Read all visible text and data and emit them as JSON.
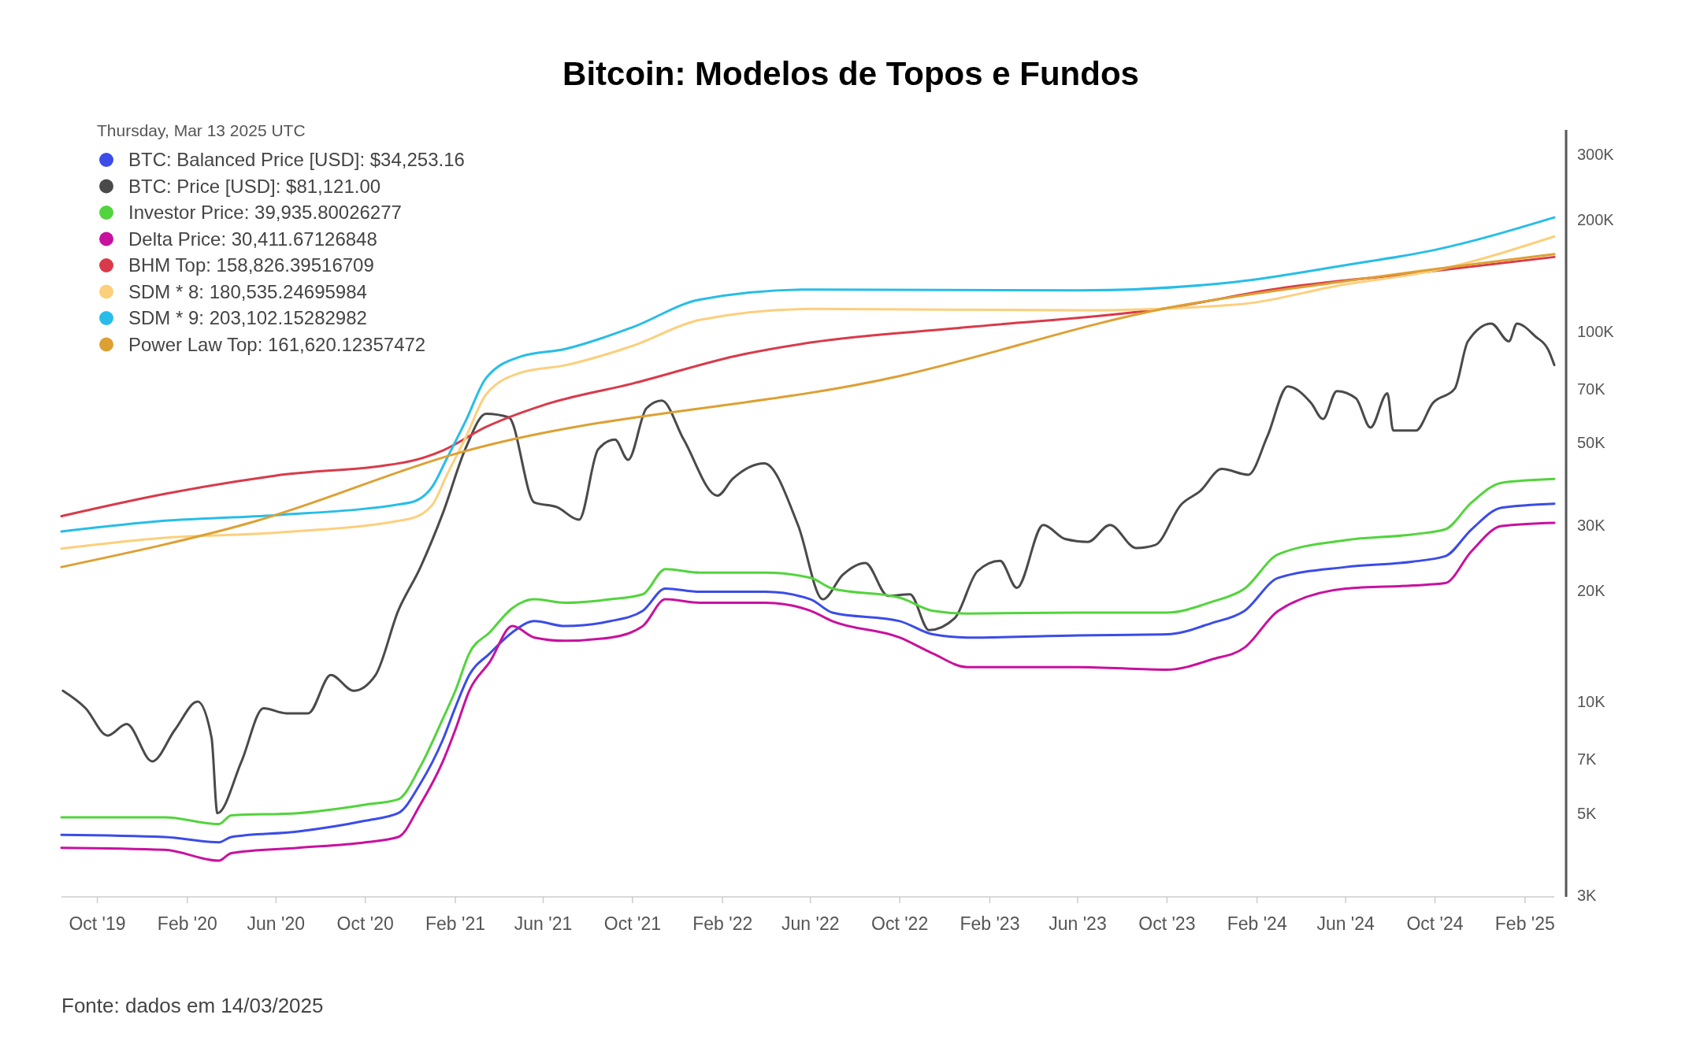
{
  "chart_data": {
    "type": "line",
    "title": "Bitcoin: Modelos de Topos e Fundos",
    "legend_title": "Thursday, Mar 13 2025 UTC",
    "log": "y",
    "legend": "top left",
    "xlim": [
      "2019-08-13",
      "2025-03-13"
    ],
    "xticks": [
      {
        "value": "2019-10-01",
        "label": "Oct '19"
      },
      {
        "value": "2020-02-01",
        "label": "Feb '20"
      },
      {
        "value": "2020-06-01",
        "label": "Jun '20"
      },
      {
        "value": "2020-10-01",
        "label": "Oct '20"
      },
      {
        "value": "2021-02-01",
        "label": "Feb '21"
      },
      {
        "value": "2021-06-01",
        "label": "Jun '21"
      },
      {
        "value": "2021-10-01",
        "label": "Oct '21"
      },
      {
        "value": "2022-02-01",
        "label": "Feb '22"
      },
      {
        "value": "2022-06-01",
        "label": "Jun '22"
      },
      {
        "value": "2022-10-01",
        "label": "Oct '22"
      },
      {
        "value": "2023-02-01",
        "label": "Feb '23"
      },
      {
        "value": "2023-06-01",
        "label": "Jun '23"
      },
      {
        "value": "2023-10-01",
        "label": "Oct '23"
      },
      {
        "value": "2024-02-01",
        "label": "Feb '24"
      },
      {
        "value": "2024-06-01",
        "label": "Jun '24"
      },
      {
        "value": "2024-10-01",
        "label": "Oct '24"
      },
      {
        "value": "2025-02-01",
        "label": "Feb '25"
      }
    ],
    "ylim": [
      3000,
      350000
    ],
    "yticks": [
      {
        "value": 3000,
        "label": "3K"
      },
      {
        "value": 5000,
        "label": "5K"
      },
      {
        "value": 7000,
        "label": "7K"
      },
      {
        "value": 10000,
        "label": "10K"
      },
      {
        "value": 20000,
        "label": "20K"
      },
      {
        "value": 30000,
        "label": "30K"
      },
      {
        "value": 50000,
        "label": "50K"
      },
      {
        "value": 70000,
        "label": "70K"
      },
      {
        "value": 100000,
        "label": "100K"
      },
      {
        "value": 200000,
        "label": "200K"
      },
      {
        "value": 300000,
        "label": "300K"
      }
    ],
    "series": [
      {
        "name": "BTC: Balanced Price [USD]: $34,253.16",
        "color": "#3b4ce8",
        "x": [
          "2019-08-13",
          "2020-01-01",
          "2020-03-15",
          "2020-04-01",
          "2020-07-01",
          "2020-10-01",
          "2020-11-15",
          "2020-12-15",
          "2021-01-15",
          "2021-02-01",
          "2021-02-20",
          "2021-03-20",
          "2021-04-20",
          "2021-05-20",
          "2021-07-01",
          "2021-09-01",
          "2021-10-15",
          "2021-11-15",
          "2022-01-01",
          "2022-04-01",
          "2022-06-01",
          "2022-07-01",
          "2022-10-01",
          "2022-11-15",
          "2023-01-01",
          "2023-06-01",
          "2023-10-01",
          "2023-12-01",
          "2024-01-15",
          "2024-03-01",
          "2024-06-01",
          "2024-09-01",
          "2024-10-15",
          "2024-11-20",
          "2024-12-31",
          "2025-03-13"
        ],
        "values": [
          4370,
          4310,
          4170,
          4310,
          4460,
          4770,
          5000,
          6000,
          7900,
          9650,
          11800,
          13500,
          15400,
          16500,
          16000,
          16500,
          17600,
          20200,
          19800,
          19800,
          18900,
          17400,
          16500,
          15200,
          14900,
          15100,
          15200,
          16300,
          17600,
          21600,
          23100,
          23900,
          24700,
          29200,
          33400,
          34253
        ]
      },
      {
        "name": "BTC: Price [USD]: $81,121.00",
        "color": "#4a4a4a",
        "x": [
          "2019-08-15",
          "2019-09-15",
          "2019-10-15",
          "2019-11-10",
          "2019-12-15",
          "2020-01-15",
          "2020-02-15",
          "2020-03-05",
          "2020-03-13",
          "2020-04-15",
          "2020-05-15",
          "2020-06-15",
          "2020-07-15",
          "2020-08-15",
          "2020-09-15",
          "2020-10-15",
          "2020-11-15",
          "2020-12-15",
          "2021-01-15",
          "2021-02-15",
          "2021-03-15",
          "2021-04-15",
          "2021-05-20",
          "2021-06-20",
          "2021-07-20",
          "2021-08-15",
          "2021-09-07",
          "2021-09-25",
          "2021-10-20",
          "2021-11-10",
          "2021-12-10",
          "2022-01-25",
          "2022-02-15",
          "2022-03-30",
          "2022-05-15",
          "2022-06-18",
          "2022-07-15",
          "2022-08-15",
          "2022-09-15",
          "2022-10-15",
          "2022-11-10",
          "2022-12-15",
          "2023-01-15",
          "2023-02-15",
          "2023-03-10",
          "2023-04-15",
          "2023-05-15",
          "2023-06-15",
          "2023-07-15",
          "2023-08-20",
          "2023-09-15",
          "2023-10-20",
          "2023-11-15",
          "2023-12-15",
          "2024-01-20",
          "2024-02-15",
          "2024-03-14",
          "2024-04-15",
          "2024-05-01",
          "2024-05-20",
          "2024-06-15",
          "2024-07-05",
          "2024-07-28",
          "2024-08-05",
          "2024-09-05",
          "2024-09-28",
          "2024-10-28",
          "2024-11-15",
          "2024-12-17",
          "2025-01-10",
          "2025-01-21",
          "2025-02-15",
          "2025-03-05",
          "2025-03-13"
        ],
        "values": [
          10700,
          9600,
          8100,
          8700,
          6900,
          8400,
          10000,
          8000,
          5000,
          6900,
          9600,
          9300,
          9300,
          11800,
          10700,
          11800,
          17600,
          23000,
          32300,
          48300,
          59900,
          58600,
          34500,
          33500,
          31000,
          48000,
          51000,
          45000,
          62000,
          65000,
          51000,
          36000,
          40000,
          44000,
          30000,
          18900,
          22000,
          23700,
          19300,
          19500,
          15600,
          16800,
          22500,
          24000,
          20300,
          30000,
          27500,
          27000,
          30000,
          26000,
          26500,
          34000,
          37000,
          42500,
          41000,
          52000,
          71000,
          64000,
          58000,
          69000,
          66000,
          55000,
          68000,
          54000,
          54000,
          64000,
          70000,
          94000,
          105000,
          94000,
          105000,
          97000,
          89000,
          81121
        ]
      },
      {
        "name": "Investor Price: 39,935.80026277",
        "color": "#52d43c",
        "x": [
          "2019-08-13",
          "2020-01-01",
          "2020-03-15",
          "2020-04-01",
          "2020-07-01",
          "2020-10-01",
          "2020-11-15",
          "2020-12-15",
          "2021-01-15",
          "2021-02-01",
          "2021-02-20",
          "2021-03-20",
          "2021-04-20",
          "2021-05-20",
          "2021-07-01",
          "2021-09-01",
          "2021-10-15",
          "2021-11-15",
          "2022-01-01",
          "2022-04-01",
          "2022-06-01",
          "2022-07-01",
          "2022-10-01",
          "2022-11-15",
          "2023-01-01",
          "2023-06-01",
          "2023-10-01",
          "2023-12-01",
          "2024-01-15",
          "2024-03-01",
          "2024-06-01",
          "2024-09-01",
          "2024-10-15",
          "2024-11-20",
          "2024-12-31",
          "2025-03-13"
        ],
        "values": [
          4870,
          4870,
          4670,
          4930,
          5000,
          5270,
          5450,
          6670,
          9000,
          10700,
          13500,
          15400,
          17900,
          18900,
          18500,
          18900,
          19500,
          22800,
          22300,
          22300,
          21600,
          20200,
          19100,
          17600,
          17300,
          17400,
          17400,
          18600,
          20200,
          25000,
          27300,
          28300,
          29200,
          34500,
          39000,
          39936
        ]
      },
      {
        "name": "Delta Price: 30,411.67126848",
        "color": "#c8119e",
        "x": [
          "2019-08-13",
          "2020-01-01",
          "2020-03-15",
          "2020-04-01",
          "2020-07-01",
          "2020-10-01",
          "2020-11-15",
          "2020-12-15",
          "2021-01-15",
          "2021-02-01",
          "2021-02-20",
          "2021-03-20",
          "2021-04-20",
          "2021-05-20",
          "2021-07-01",
          "2021-09-01",
          "2021-10-15",
          "2021-11-15",
          "2022-01-01",
          "2022-04-01",
          "2022-06-01",
          "2022-07-01",
          "2022-10-01",
          "2022-11-15",
          "2023-01-01",
          "2023-06-01",
          "2023-10-01",
          "2023-12-01",
          "2024-01-15",
          "2024-03-01",
          "2024-06-01",
          "2024-09-01",
          "2024-10-15",
          "2024-11-20",
          "2024-12-31",
          "2025-03-13"
        ],
        "values": [
          4030,
          3980,
          3720,
          3900,
          4030,
          4170,
          4310,
          5270,
          6900,
          8400,
          10700,
          12800,
          16000,
          14900,
          14600,
          14900,
          16000,
          18900,
          18500,
          18500,
          17600,
          16500,
          14900,
          13500,
          12400,
          12400,
          12200,
          13000,
          14000,
          17600,
          20200,
          20600,
          20900,
          25500,
          29800,
          30412
        ]
      },
      {
        "name": "BHM Top: 158,826.39516709",
        "color": "#d93a4a",
        "x": [
          "2019-08-13",
          "2020-01-01",
          "2020-06-01",
          "2020-12-01",
          "2021-01-15",
          "2021-03-15",
          "2021-06-01",
          "2021-10-01",
          "2022-03-01",
          "2022-06-01",
          "2023-01-01",
          "2023-10-01",
          "2024-03-01",
          "2024-09-01",
          "2025-03-13"
        ],
        "values": [
          31700,
          36400,
          40800,
          44600,
          47700,
          55200,
          63200,
          72300,
          86700,
          93300,
          102600,
          115600,
          130500,
          143400,
          158826
        ]
      },
      {
        "name": "SDM * 8: 180,535.24695984",
        "color": "#fccf7c",
        "x": [
          "2019-08-13",
          "2020-01-01",
          "2020-06-01",
          "2020-12-01",
          "2021-01-01",
          "2021-01-20",
          "2021-02-15",
          "2021-03-15",
          "2021-05-01",
          "2021-07-01",
          "2021-10-01",
          "2022-01-01",
          "2022-06-01",
          "2023-06-01",
          "2024-01-01",
          "2024-06-01",
          "2024-10-01",
          "2025-03-13"
        ],
        "values": [
          25900,
          27700,
          28600,
          31200,
          34100,
          40800,
          51600,
          67600,
          77300,
          81000,
          91400,
          107400,
          115000,
          114000,
          118000,
          134000,
          146000,
          180535
        ]
      },
      {
        "name": "SDM * 9: 203,102.15282982",
        "color": "#27bde8",
        "x": [
          "2019-08-13",
          "2020-01-01",
          "2020-06-01",
          "2020-12-01",
          "2021-01-01",
          "2021-01-20",
          "2021-02-15",
          "2021-03-15",
          "2021-05-01",
          "2021-07-01",
          "2021-10-01",
          "2022-01-01",
          "2022-06-01",
          "2023-06-01",
          "2024-01-01",
          "2024-06-01",
          "2024-10-01",
          "2025-03-13"
        ],
        "values": [
          28800,
          30800,
          31900,
          34500,
          38200,
          45200,
          57200,
          74800,
          85500,
          89600,
          102600,
          121900,
          129700,
          129000,
          135900,
          151000,
          166000,
          203102
        ]
      },
      {
        "name": "Power Law Top: 161,620.12357472",
        "color": "#dda033",
        "x": [
          "2019-08-13",
          "2020-05-01",
          "2021-02-01",
          "2022-10-01",
          "2023-10-01",
          "2024-06-01",
          "2025-03-13"
        ],
        "values": [
          23100,
          30600,
          46700,
          75800,
          115600,
          136700,
          161620
        ]
      }
    ],
    "annotations": [
      "Fonte: dados em 14/03/2025"
    ]
  }
}
